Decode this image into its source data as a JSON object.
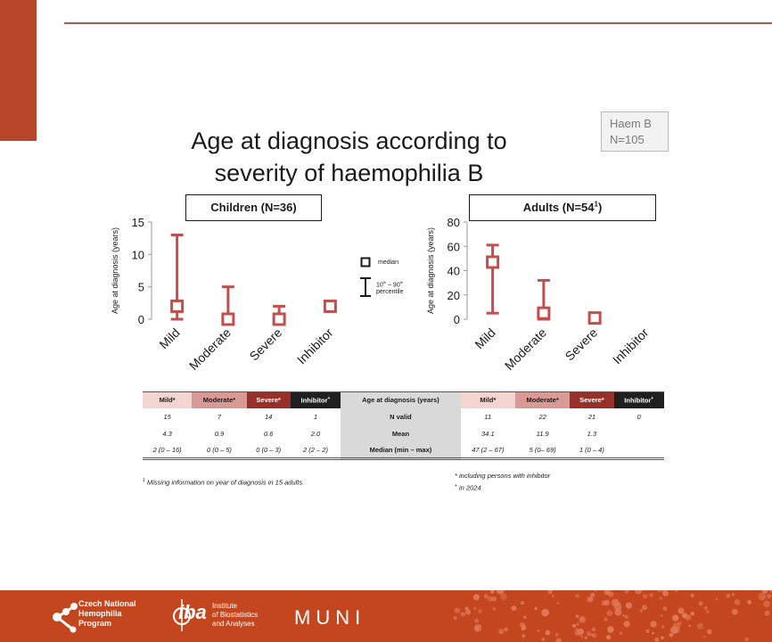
{
  "title_lines": [
    "Age at diagnosis according to",
    "severity of haemophilia B"
  ],
  "haem_box": {
    "line1": "Haem B",
    "line2": "N=105"
  },
  "panels": {
    "children": {
      "label": "Children (N=36)"
    },
    "adults": {
      "label_main": "Adults (N=54",
      "label_sup": "1",
      "label_end": ")"
    }
  },
  "legend": {
    "median": "median",
    "range_line1": "10",
    "range_sup1": "th",
    "range_mid": " – 90",
    "range_sup2": "th",
    "range_line2": "percentile"
  },
  "chart_data": [
    {
      "type": "box",
      "title": "Children (N=36)",
      "ylabel": "Age at diagnosis (years)",
      "ylim": [
        0,
        15
      ],
      "yticks": [
        0,
        5,
        10,
        15
      ],
      "categories": [
        "Mild",
        "Moderate",
        "Severe",
        "Inhibitor"
      ],
      "median": [
        2,
        0,
        0,
        2
      ],
      "p10": [
        0,
        0,
        0,
        2
      ],
      "p90": [
        13,
        5,
        2,
        2
      ]
    },
    {
      "type": "box",
      "title": "Adults (N=54)",
      "ylabel": "Age at diagnosis (years)",
      "ylim": [
        0,
        80
      ],
      "yticks": [
        0,
        20,
        40,
        60,
        80
      ],
      "categories": [
        "Mild",
        "Moderate",
        "Severe",
        "Inhibitor"
      ],
      "median": [
        47,
        5,
        1,
        null
      ],
      "p10": [
        5,
        0,
        0,
        null
      ],
      "p90": [
        61,
        32,
        2,
        null
      ]
    }
  ],
  "table": {
    "children_headers": [
      "Mild*",
      "Moderate*",
      "Severe*",
      "Inhibitor"
    ],
    "children_inhibitor_sup": "+",
    "center_header": "Age at diagnosis (years)",
    "adult_headers": [
      "Mild*",
      "Moderate*",
      "Severe*",
      "Inhibitor"
    ],
    "adult_inhibitor_sup": "+",
    "rows": [
      {
        "label": "N valid",
        "children": [
          "15",
          "7",
          "14",
          "1"
        ],
        "adults": [
          "11",
          "22",
          "21",
          "0"
        ]
      },
      {
        "label": "Mean",
        "children": [
          "4.3",
          "0.9",
          "0.6",
          "2.0"
        ],
        "adults": [
          "34.1",
          "11.9",
          "1.3",
          ""
        ]
      },
      {
        "label": "Median (min – max)",
        "children": [
          "2 (0 – 16)",
          "0 (0 – 5)",
          "0 (0 – 3)",
          "2 (2 – 2)"
        ],
        "adults": [
          "47 (2 – 67)",
          "5 (0– 69)",
          "1 (0 – 4)",
          ""
        ]
      }
    ]
  },
  "footnotes": {
    "missing_sup": "1",
    "missing": " Missing information on year of diagnosis in 15 adults.",
    "inhibitor": "* including persons with inhibitor",
    "year_sup": "+",
    "year": " in 2024"
  },
  "logos": {
    "cnhp": [
      "Czech National",
      "Hemophilia",
      "Program"
    ],
    "iba_mark": "iba",
    "iba_text": [
      "Institute",
      "of Biostatistics",
      "and Analyses"
    ],
    "muni": "MUNI"
  },
  "colors": {
    "accent": "#c4461f",
    "series": "#c0504d",
    "left_bar": "#b8452a"
  }
}
